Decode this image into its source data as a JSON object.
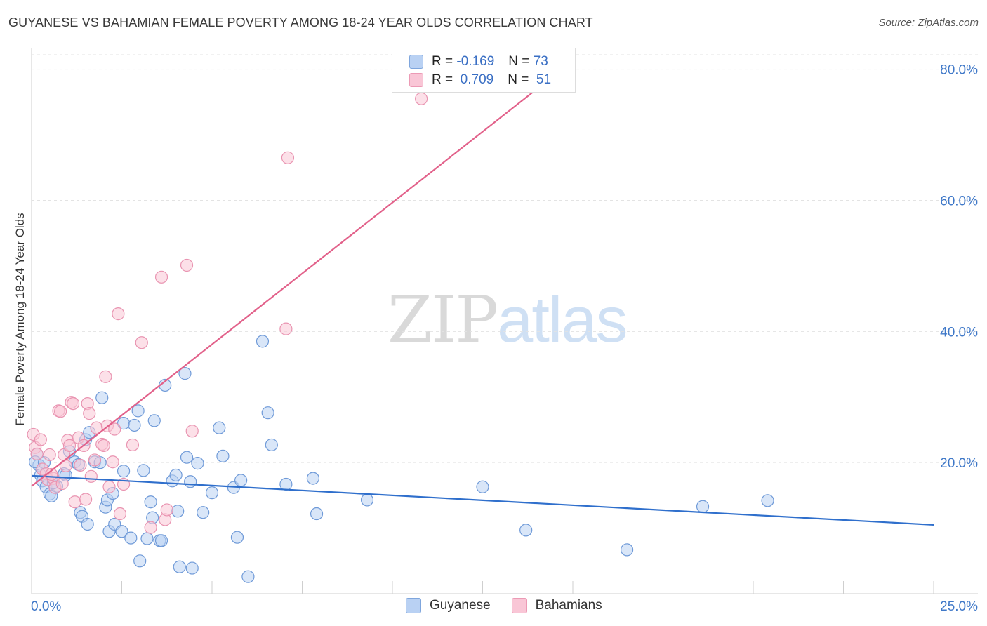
{
  "title": "GUYANESE VS BAHAMIAN FEMALE POVERTY AMONG 18-24 YEAR OLDS CORRELATION CHART",
  "source": "Source: ZipAtlas.com",
  "watermark": {
    "zip": "ZIP",
    "atlas": "atlas"
  },
  "legend": {
    "rows": [
      {
        "r_label": "R =",
        "r_value": "-0.169",
        "n_label": "N =",
        "n_value": "73"
      },
      {
        "r_label": "R =",
        "r_value": "0.709",
        "n_label": "N =",
        "n_value": "51"
      }
    ]
  },
  "bottom_legend": [
    "Guyanese",
    "Bahamians"
  ],
  "colors": {
    "guyanese_fill": "#b9d1f3",
    "guyanese_stroke": "#6f9ad8",
    "guyanese_line": "#2f6fcc",
    "bahamian_fill": "#f9c6d6",
    "bahamian_stroke": "#e994b1",
    "bahamian_line": "#e2618a",
    "axis_text": "#3f78c8",
    "grid": "#e3e3e3"
  },
  "chart_data": {
    "type": "scatter",
    "title": "GUYANESE VS BAHAMIAN FEMALE POVERTY AMONG 18-24 YEAR OLDS CORRELATION CHART",
    "ylabel": "Female Poverty Among 18-24 Year Olds",
    "xlabel": "",
    "x_tick_labels": [
      "0.0%",
      "25.0%"
    ],
    "y_tick_labels": [
      "20.0%",
      "40.0%",
      "60.0%",
      "80.0%"
    ],
    "xlim": [
      0,
      25
    ],
    "ylim": [
      0,
      82
    ],
    "grid": true,
    "legend_position": "top-center",
    "series": [
      {
        "name": "Guyanese",
        "trend": {
          "x": [
            0,
            25
          ],
          "y": [
            18.0,
            10.5
          ]
        },
        "points": [
          {
            "x": 0.15,
            "y": 21.3
          },
          {
            "x": 0.2,
            "y": 19.6
          },
          {
            "x": 0.25,
            "y": 18.1
          },
          {
            "x": 0.3,
            "y": 17.2
          },
          {
            "x": 0.4,
            "y": 16.3
          },
          {
            "x": 0.5,
            "y": 15.2
          },
          {
            "x": 0.55,
            "y": 14.9
          },
          {
            "x": 0.7,
            "y": 16.4
          },
          {
            "x": 0.9,
            "y": 18.3
          },
          {
            "x": 0.95,
            "y": 18.1
          },
          {
            "x": 1.05,
            "y": 21.7
          },
          {
            "x": 1.2,
            "y": 20.1
          },
          {
            "x": 1.3,
            "y": 19.7
          },
          {
            "x": 1.35,
            "y": 12.4
          },
          {
            "x": 1.4,
            "y": 11.8
          },
          {
            "x": 1.5,
            "y": 23.5
          },
          {
            "x": 1.55,
            "y": 10.6
          },
          {
            "x": 1.6,
            "y": 24.6
          },
          {
            "x": 1.75,
            "y": 20.1
          },
          {
            "x": 1.9,
            "y": 20.0
          },
          {
            "x": 1.95,
            "y": 29.9
          },
          {
            "x": 2.05,
            "y": 13.2
          },
          {
            "x": 2.1,
            "y": 14.3
          },
          {
            "x": 2.15,
            "y": 9.5
          },
          {
            "x": 2.25,
            "y": 15.3
          },
          {
            "x": 2.3,
            "y": 10.6
          },
          {
            "x": 2.5,
            "y": 9.5
          },
          {
            "x": 2.55,
            "y": 18.7
          },
          {
            "x": 2.55,
            "y": 26.0
          },
          {
            "x": 2.75,
            "y": 8.5
          },
          {
            "x": 2.85,
            "y": 25.7
          },
          {
            "x": 2.95,
            "y": 27.9
          },
          {
            "x": 3.0,
            "y": 5.0
          },
          {
            "x": 3.1,
            "y": 18.8
          },
          {
            "x": 3.2,
            "y": 8.4
          },
          {
            "x": 3.3,
            "y": 14.0
          },
          {
            "x": 3.35,
            "y": 11.6
          },
          {
            "x": 3.4,
            "y": 26.4
          },
          {
            "x": 3.55,
            "y": 8.1
          },
          {
            "x": 3.6,
            "y": 8.1
          },
          {
            "x": 3.7,
            "y": 31.8
          },
          {
            "x": 3.9,
            "y": 17.2
          },
          {
            "x": 4.0,
            "y": 18.1
          },
          {
            "x": 4.05,
            "y": 12.6
          },
          {
            "x": 4.1,
            "y": 4.1
          },
          {
            "x": 4.25,
            "y": 33.6
          },
          {
            "x": 4.3,
            "y": 20.8
          },
          {
            "x": 4.4,
            "y": 17.1
          },
          {
            "x": 4.45,
            "y": 3.9
          },
          {
            "x": 4.6,
            "y": 19.9
          },
          {
            "x": 4.75,
            "y": 12.4
          },
          {
            "x": 5.0,
            "y": 15.4
          },
          {
            "x": 5.2,
            "y": 25.3
          },
          {
            "x": 5.3,
            "y": 21.0
          },
          {
            "x": 5.6,
            "y": 16.2
          },
          {
            "x": 5.7,
            "y": 8.6
          },
          {
            "x": 5.8,
            "y": 17.3
          },
          {
            "x": 6.0,
            "y": 2.6
          },
          {
            "x": 6.4,
            "y": 38.5
          },
          {
            "x": 6.55,
            "y": 27.6
          },
          {
            "x": 6.65,
            "y": 22.7
          },
          {
            "x": 7.05,
            "y": 16.7
          },
          {
            "x": 7.8,
            "y": 17.6
          },
          {
            "x": 7.9,
            "y": 12.2
          },
          {
            "x": 9.3,
            "y": 14.3
          },
          {
            "x": 12.5,
            "y": 16.3
          },
          {
            "x": 13.7,
            "y": 9.7
          },
          {
            "x": 16.5,
            "y": 6.7
          },
          {
            "x": 18.6,
            "y": 13.3
          },
          {
            "x": 20.4,
            "y": 14.2
          },
          {
            "x": 0.1,
            "y": 20.1
          },
          {
            "x": 0.35,
            "y": 20.0
          },
          {
            "x": 0.6,
            "y": 16.9
          }
        ]
      },
      {
        "name": "Bahamians",
        "trend": {
          "x": [
            0,
            14.7
          ],
          "y": [
            16.4,
            80.0
          ]
        },
        "points": [
          {
            "x": 0.05,
            "y": 24.3
          },
          {
            "x": 0.1,
            "y": 22.3
          },
          {
            "x": 0.15,
            "y": 21.3
          },
          {
            "x": 0.25,
            "y": 23.5
          },
          {
            "x": 0.3,
            "y": 19.0
          },
          {
            "x": 0.4,
            "y": 18.3
          },
          {
            "x": 0.45,
            "y": 17.4
          },
          {
            "x": 0.5,
            "y": 21.2
          },
          {
            "x": 0.6,
            "y": 17.6
          },
          {
            "x": 0.65,
            "y": 16.2
          },
          {
            "x": 0.75,
            "y": 27.9
          },
          {
            "x": 0.8,
            "y": 27.8
          },
          {
            "x": 0.85,
            "y": 16.8
          },
          {
            "x": 0.9,
            "y": 21.2
          },
          {
            "x": 0.95,
            "y": 19.5
          },
          {
            "x": 1.0,
            "y": 23.4
          },
          {
            "x": 1.05,
            "y": 22.6
          },
          {
            "x": 1.1,
            "y": 29.2
          },
          {
            "x": 1.15,
            "y": 29.0
          },
          {
            "x": 1.2,
            "y": 14.0
          },
          {
            "x": 1.3,
            "y": 23.8
          },
          {
            "x": 1.35,
            "y": 19.6
          },
          {
            "x": 1.45,
            "y": 22.6
          },
          {
            "x": 1.5,
            "y": 14.4
          },
          {
            "x": 1.55,
            "y": 29.0
          },
          {
            "x": 1.6,
            "y": 27.5
          },
          {
            "x": 1.65,
            "y": 17.9
          },
          {
            "x": 1.75,
            "y": 20.4
          },
          {
            "x": 1.8,
            "y": 25.3
          },
          {
            "x": 1.95,
            "y": 22.8
          },
          {
            "x": 2.0,
            "y": 22.6
          },
          {
            "x": 2.05,
            "y": 33.1
          },
          {
            "x": 2.1,
            "y": 25.6
          },
          {
            "x": 2.15,
            "y": 16.3
          },
          {
            "x": 2.25,
            "y": 20.1
          },
          {
            "x": 2.3,
            "y": 25.1
          },
          {
            "x": 2.4,
            "y": 42.7
          },
          {
            "x": 2.45,
            "y": 12.2
          },
          {
            "x": 2.55,
            "y": 16.7
          },
          {
            "x": 2.8,
            "y": 22.7
          },
          {
            "x": 3.05,
            "y": 38.3
          },
          {
            "x": 3.3,
            "y": 10.1
          },
          {
            "x": 3.6,
            "y": 48.3
          },
          {
            "x": 3.7,
            "y": 11.3
          },
          {
            "x": 3.75,
            "y": 12.8
          },
          {
            "x": 4.3,
            "y": 50.1
          },
          {
            "x": 4.45,
            "y": 24.8
          },
          {
            "x": 7.05,
            "y": 40.4
          },
          {
            "x": 7.1,
            "y": 66.5
          },
          {
            "x": 10.8,
            "y": 75.5
          },
          {
            "x": 0.55,
            "y": 18.2
          }
        ]
      }
    ]
  }
}
